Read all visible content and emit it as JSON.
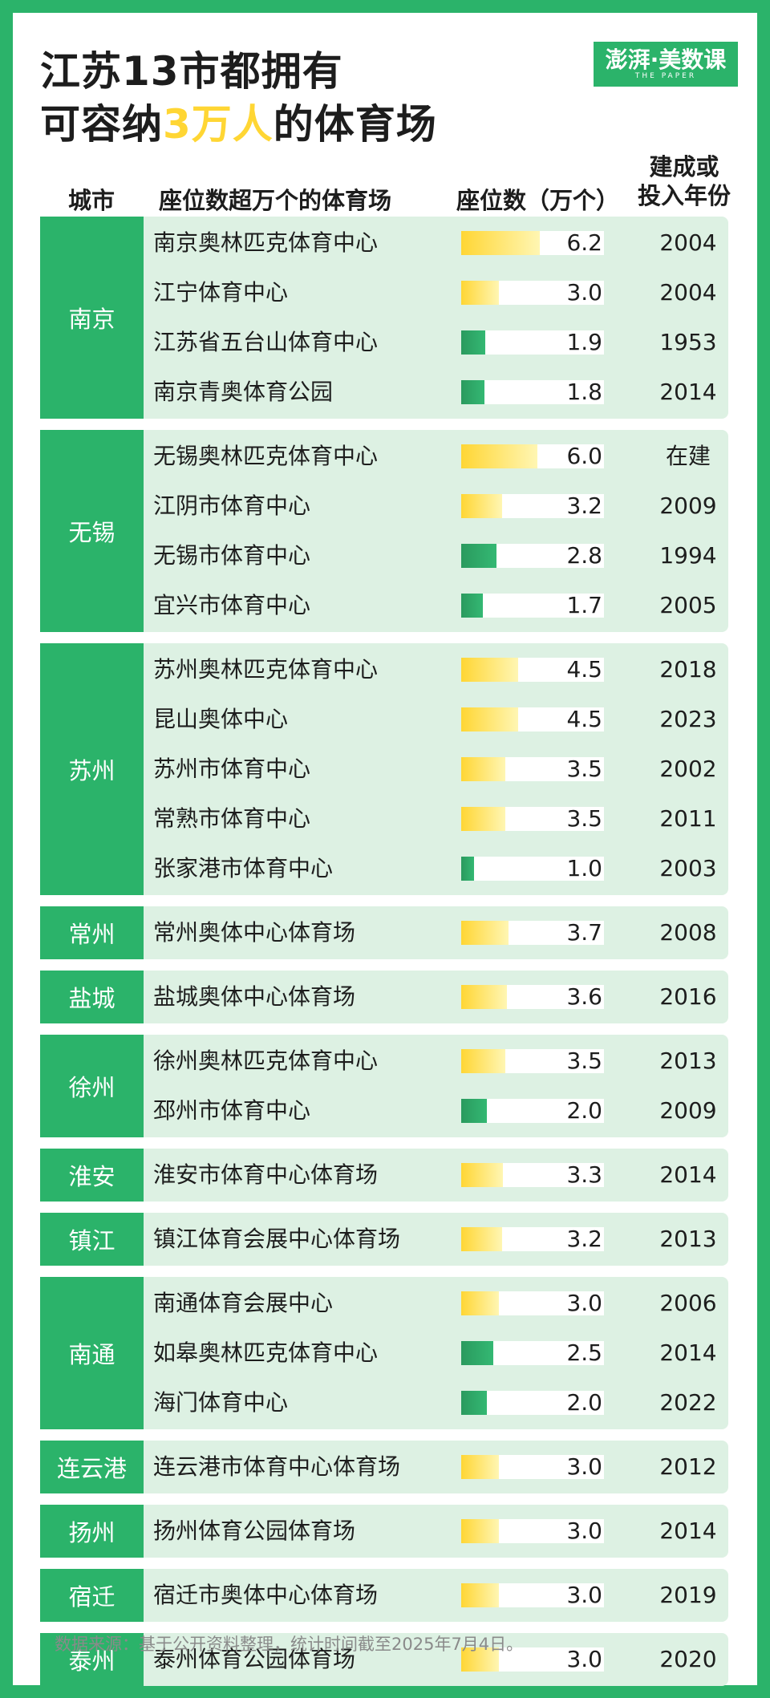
{
  "title_line1": "江苏13市都拥有",
  "title_line2_pre": "可容纳",
  "title_line2_highlight": "3万人",
  "title_line2_post": "的体育场",
  "logo_main": "澎湃·美数课",
  "logo_sub": "THE PAPER",
  "headers": {
    "city": "城市",
    "stadium": "座位数超万个的体育场",
    "seats": "座位数（万个）",
    "year_line1": "建成或",
    "year_line2": "投入年份"
  },
  "colors": {
    "accent_green": "#2bb36a",
    "row_bg": "#ddf1e3",
    "bar_yellow": "#ffd634",
    "bar_green": "#2a9a5e",
    "highlight": "#ffd634"
  },
  "chart_data": {
    "type": "table",
    "bar_scale_max": 7.2,
    "bar_color_threshold": 3.0,
    "groups": [
      {
        "city": "南京",
        "rows": [
          {
            "stadium": "南京奥林匹克体育中心",
            "seats": 6.2,
            "seats_label": "6.2",
            "year": "2004"
          },
          {
            "stadium": "江宁体育中心",
            "seats": 3.0,
            "seats_label": "3.0",
            "year": "2004"
          },
          {
            "stadium": "江苏省五台山体育中心",
            "seats": 1.9,
            "seats_label": "1.9",
            "year": "1953"
          },
          {
            "stadium": "南京青奥体育公园",
            "seats": 1.8,
            "seats_label": "1.8",
            "year": "2014"
          }
        ]
      },
      {
        "city": "无锡",
        "rows": [
          {
            "stadium": "无锡奥林匹克体育中心",
            "seats": 6.0,
            "seats_label": "6.0",
            "year": "在建"
          },
          {
            "stadium": "江阴市体育中心",
            "seats": 3.2,
            "seats_label": "3.2",
            "year": "2009"
          },
          {
            "stadium": "无锡市体育中心",
            "seats": 2.8,
            "seats_label": "2.8",
            "year": "1994"
          },
          {
            "stadium": "宜兴市体育中心",
            "seats": 1.7,
            "seats_label": "1.7",
            "year": "2005"
          }
        ]
      },
      {
        "city": "苏州",
        "rows": [
          {
            "stadium": "苏州奥林匹克体育中心",
            "seats": 4.5,
            "seats_label": "4.5",
            "year": "2018"
          },
          {
            "stadium": "昆山奥体中心",
            "seats": 4.5,
            "seats_label": "4.5",
            "year": "2023"
          },
          {
            "stadium": "苏州市体育中心",
            "seats": 3.5,
            "seats_label": "3.5",
            "year": "2002"
          },
          {
            "stadium": "常熟市体育中心",
            "seats": 3.5,
            "seats_label": "3.5",
            "year": "2011"
          },
          {
            "stadium": "张家港市体育中心",
            "seats": 1.0,
            "seats_label": "1.0",
            "year": "2003"
          }
        ]
      },
      {
        "city": "常州",
        "rows": [
          {
            "stadium": "常州奥体中心体育场",
            "seats": 3.7,
            "seats_label": "3.7",
            "year": "2008"
          }
        ]
      },
      {
        "city": "盐城",
        "rows": [
          {
            "stadium": "盐城奥体中心体育场",
            "seats": 3.6,
            "seats_label": "3.6",
            "year": "2016"
          }
        ]
      },
      {
        "city": "徐州",
        "rows": [
          {
            "stadium": "徐州奥林匹克体育中心",
            "seats": 3.5,
            "seats_label": "3.5",
            "year": "2013"
          },
          {
            "stadium": "邳州市体育中心",
            "seats": 2.0,
            "seats_label": "2.0",
            "year": "2009"
          }
        ]
      },
      {
        "city": "淮安",
        "rows": [
          {
            "stadium": "淮安市体育中心体育场",
            "seats": 3.3,
            "seats_label": "3.3",
            "year": "2014"
          }
        ]
      },
      {
        "city": "镇江",
        "rows": [
          {
            "stadium": "镇江体育会展中心体育场",
            "seats": 3.2,
            "seats_label": "3.2",
            "year": "2013"
          }
        ]
      },
      {
        "city": "南通",
        "rows": [
          {
            "stadium": "南通体育会展中心",
            "seats": 3.0,
            "seats_label": "3.0",
            "year": "2006"
          },
          {
            "stadium": "如皋奥林匹克体育中心",
            "seats": 2.5,
            "seats_label": "2.5",
            "year": "2014"
          },
          {
            "stadium": "海门体育中心",
            "seats": 2.0,
            "seats_label": "2.0",
            "year": "2022"
          }
        ]
      },
      {
        "city": "连云港",
        "rows": [
          {
            "stadium": "连云港市体育中心体育场",
            "seats": 3.0,
            "seats_label": "3.0",
            "year": "2012"
          }
        ]
      },
      {
        "city": "扬州",
        "rows": [
          {
            "stadium": "扬州体育公园体育场",
            "seats": 3.0,
            "seats_label": "3.0",
            "year": "2014"
          }
        ]
      },
      {
        "city": "宿迁",
        "rows": [
          {
            "stadium": "宿迁市奥体中心体育场",
            "seats": 3.0,
            "seats_label": "3.0",
            "year": "2019"
          }
        ]
      },
      {
        "city": "泰州",
        "rows": [
          {
            "stadium": "泰州体育公园体育场",
            "seats": 3.0,
            "seats_label": "3.0",
            "year": "2020"
          }
        ]
      }
    ]
  },
  "source_note": "数据来源：基于公开资料整理，统计时间截至2025年7月4日。"
}
